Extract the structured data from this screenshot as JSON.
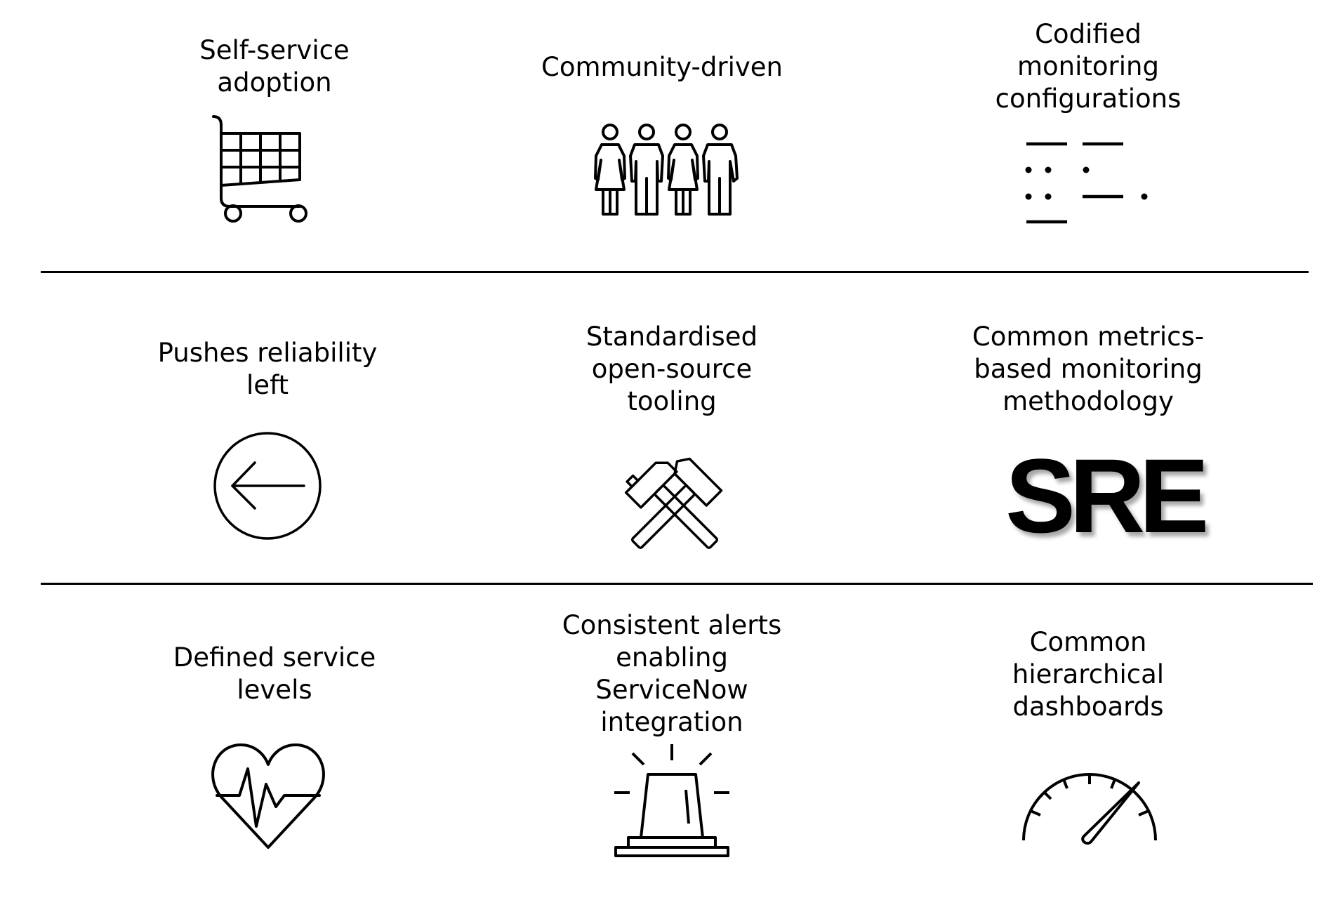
{
  "cells": [
    {
      "label": "Self-service\nadoption",
      "icon": "shopping-cart-icon"
    },
    {
      "label": "Community-driven",
      "icon": "people-group-icon"
    },
    {
      "label": "Codified\nmonitoring\nconfigurations",
      "icon": "code-dots-icon"
    },
    {
      "label": "Pushes reliability\nleft",
      "icon": "arrow-left-circle-icon"
    },
    {
      "label": "Standardised\nopen-source\ntooling",
      "icon": "crossed-hammers-icon"
    },
    {
      "label": "Common metrics-\nbased monitoring\nmethodology",
      "icon": "sre-logo",
      "logo_text": "SRE"
    },
    {
      "label": "Defined service\nlevels",
      "icon": "heart-pulse-icon"
    },
    {
      "label": "Consistent alerts\nenabling\nServiceNow\nintegration",
      "icon": "alarm-beacon-icon"
    },
    {
      "label": "Common\nhierarchical\ndashboards",
      "icon": "speedometer-icon"
    }
  ],
  "colors": {
    "foreground": "#000000",
    "background": "#ffffff"
  }
}
